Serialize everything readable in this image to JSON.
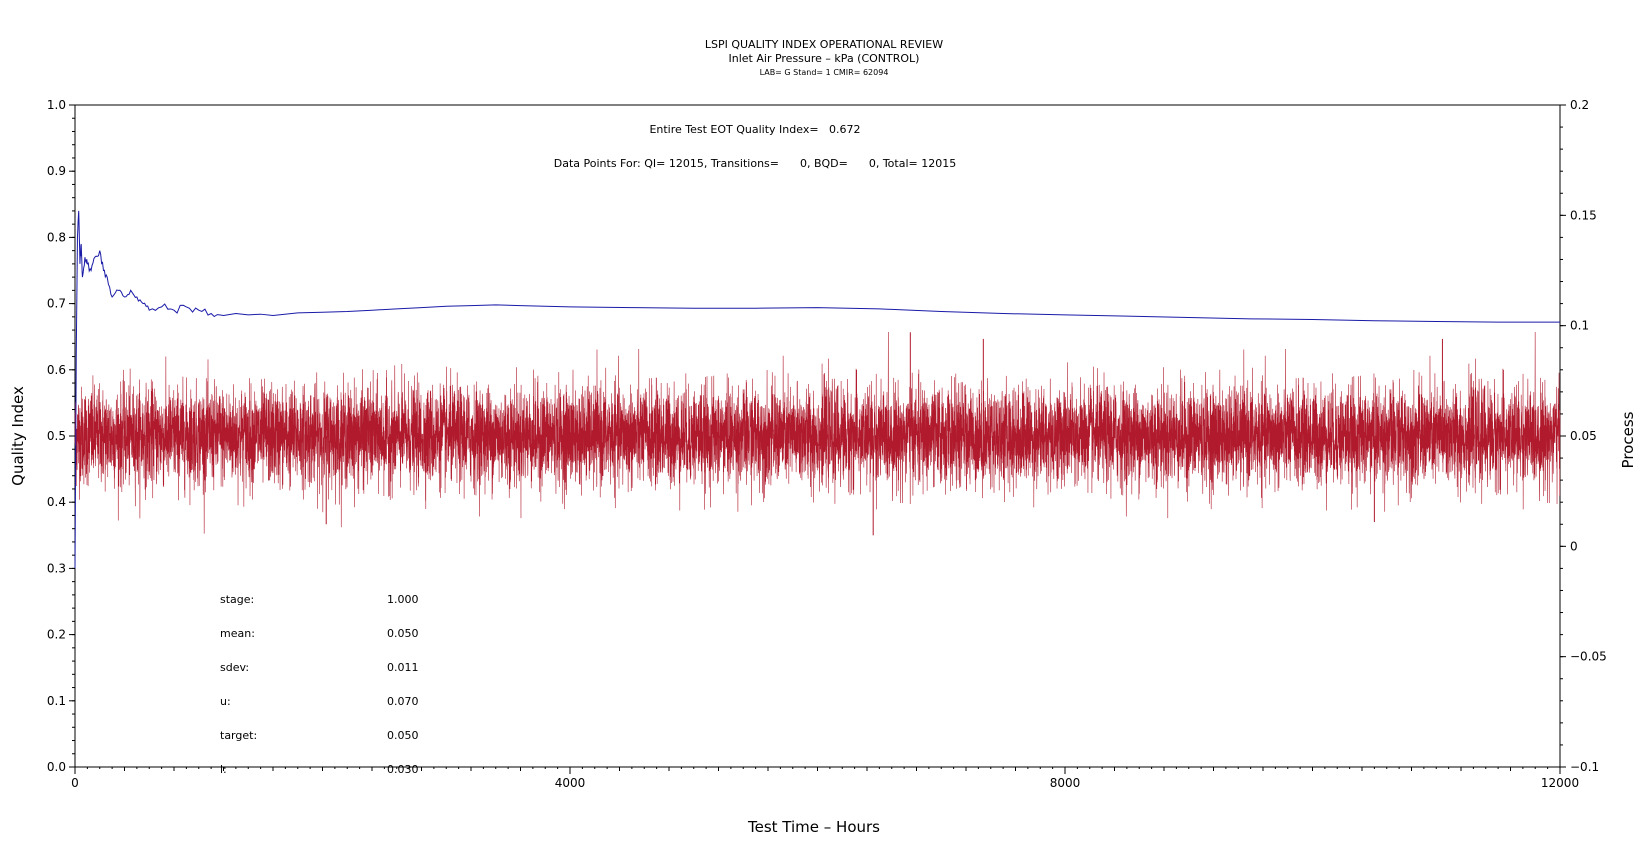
{
  "chart_data": {
    "type": "line",
    "title": "LSPI QUALITY INDEX OPERATIONAL REVIEW",
    "subtitle": "Inlet Air Pressure – kPa (CONTROL)",
    "subtitle2": "LAB= G Stand= 1 CMIR= 62094",
    "xlabel": "Test Time – Hours",
    "ylabel_left": "Quality Index",
    "ylabel_right": "Process",
    "xlim": [
      0,
      12000
    ],
    "ylim_left": [
      0.0,
      1.0
    ],
    "ylim_right": [
      -0.1,
      0.2
    ],
    "x_ticks": [
      "0",
      "4000",
      "8000",
      "12000"
    ],
    "y_left_ticks": [
      "0.0",
      "0.1",
      "0.2",
      "0.3",
      "0.4",
      "0.5",
      "0.6",
      "0.7",
      "0.8",
      "0.9",
      "1.0"
    ],
    "y_right_ticks": [
      "−0.1",
      "−0.05",
      "0",
      "0.05",
      "0.1",
      "0.15",
      "0.2"
    ],
    "annotation_line1": "Entire Test EOT Quality Index=   0.672",
    "annotation_line2": "Data Points For: QI= 12015, Transitions=      0, BQD=      0, Total= 12015",
    "stats": [
      {
        "label": "stage:",
        "value": "1.000"
      },
      {
        "label": "mean:",
        "value": "0.050"
      },
      {
        "label": "sdev:",
        "value": "0.011"
      },
      {
        "label": "u:",
        "value": "0.070"
      },
      {
        "label": "target:",
        "value": "0.050"
      },
      {
        "label": "l:",
        "value": "0.030"
      }
    ],
    "colors": {
      "quality_index": "#1a1aa8",
      "process": "#b01a2c"
    },
    "series": [
      {
        "axis": "left",
        "x": [
          0,
          10,
          20,
          30,
          40,
          50,
          60,
          80,
          100,
          130,
          160,
          200,
          230,
          260,
          300,
          350,
          400,
          450,
          500,
          550,
          600,
          700,
          800,
          900,
          1000,
          1100,
          1200,
          1300,
          1400,
          1500,
          1600,
          1800,
          2000,
          2200,
          2400,
          2600,
          2800,
          3000,
          3200,
          3400,
          3600,
          3800,
          4000,
          4500,
          5000,
          5500,
          6000,
          6500,
          7000,
          7500,
          8000,
          8500,
          9000,
          9500,
          10000,
          10500,
          11000,
          11500,
          12000
        ],
        "y": [
          0.3,
          0.62,
          0.8,
          0.84,
          0.76,
          0.79,
          0.74,
          0.77,
          0.76,
          0.75,
          0.77,
          0.78,
          0.75,
          0.74,
          0.71,
          0.72,
          0.71,
          0.72,
          0.71,
          0.7,
          0.69,
          0.695,
          0.69,
          0.695,
          0.69,
          0.685,
          0.682,
          0.685,
          0.683,
          0.684,
          0.682,
          0.686,
          0.687,
          0.688,
          0.69,
          0.692,
          0.694,
          0.696,
          0.697,
          0.698,
          0.697,
          0.696,
          0.695,
          0.694,
          0.693,
          0.693,
          0.694,
          0.692,
          0.688,
          0.685,
          0.683,
          0.681,
          0.679,
          0.677,
          0.676,
          0.674,
          0.673,
          0.672,
          0.672
        ]
      },
      {
        "axis": "right",
        "mean": 0.05,
        "sdev": 0.011,
        "n": 12015,
        "spikes": [
          {
            "x": 6750,
            "y": 0.097
          },
          {
            "x": 6450,
            "y": 0.005
          },
          {
            "x": 2030,
            "y": 0.01
          },
          {
            "x": 7340,
            "y": 0.094
          },
          {
            "x": 11050,
            "y": 0.094
          },
          {
            "x": 10500,
            "y": 0.011
          }
        ]
      }
    ]
  }
}
